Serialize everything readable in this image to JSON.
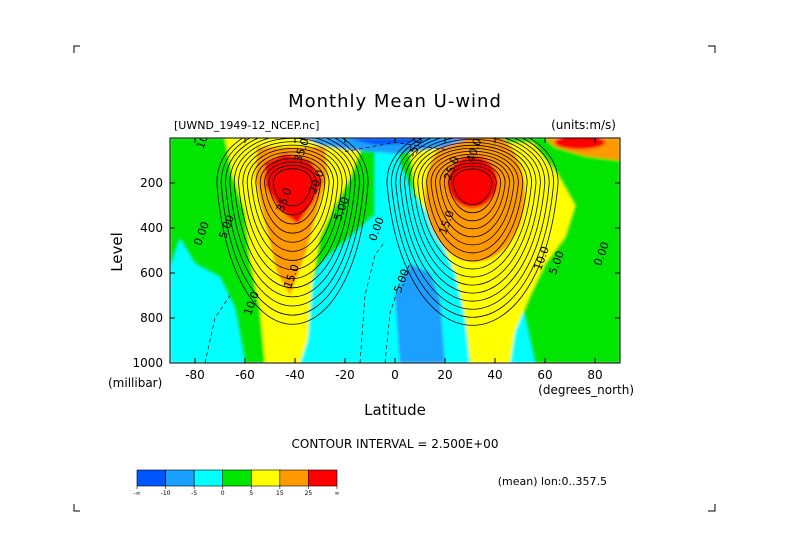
{
  "chart_data": {
    "type": "contour",
    "title": "Monthly Mean U-wind",
    "file_label": "[UWND_1949-12_NCEP.nc]",
    "units_label": "(units:m/s)",
    "xlabel": "Latitude",
    "x_units": "(degrees_north)",
    "ylabel": "Level",
    "y_units": "(millibar)",
    "xlim": [
      -90,
      90
    ],
    "ylim": [
      1000,
      0
    ],
    "x_ticks": [
      -80,
      -60,
      -40,
      -20,
      0,
      20,
      40,
      60,
      80
    ],
    "y_ticks": [
      200,
      400,
      600,
      800,
      1000
    ],
    "contour_interval_text": "CONTOUR INTERVAL = 2.500E+00",
    "mean_note": "(mean) lon:0..357.5",
    "contour_interval": 2.5,
    "fill_levels": [
      -10,
      -5,
      0,
      5,
      15,
      25
    ],
    "fill_colors": [
      "#0055ff",
      "#1aa0ff",
      "#00ffff",
      "#00e600",
      "#ffff00",
      "#ff9900",
      "#ff0000"
    ],
    "colorbar_labels": [
      "-∞",
      "-10",
      "-5",
      "0",
      "5",
      "15",
      "25",
      "∞"
    ],
    "jets": [
      {
        "lat": -41,
        "level": 200,
        "peak_speed": 35
      },
      {
        "lat": 31,
        "level": 200,
        "peak_speed": 40
      }
    ],
    "contour_labels": [
      {
        "text": "0.00",
        "lat": -76,
        "level": 430
      },
      {
        "text": "0.00",
        "lat": -6,
        "level": 410
      },
      {
        "text": "0.00",
        "lat": 84,
        "level": 520
      },
      {
        "text": "5.00",
        "lat": -66,
        "level": 400
      },
      {
        "text": "5.00",
        "lat": -20,
        "level": 320
      },
      {
        "text": "5.00",
        "lat": 4,
        "level": 640
      },
      {
        "text": "5.00",
        "lat": 66,
        "level": 560
      },
      {
        "text": "10.0",
        "lat": -56,
        "level": 740
      },
      {
        "text": "10.0",
        "lat": -75,
        "level": 0
      },
      {
        "text": "10.0",
        "lat": 60,
        "level": 540
      },
      {
        "text": "15.0",
        "lat": -40,
        "level": 620
      },
      {
        "text": "15.0",
        "lat": 22,
        "level": 380
      },
      {
        "text": "20.0",
        "lat": -30,
        "level": 200
      },
      {
        "text": "25.0",
        "lat": 24,
        "level": 140
      },
      {
        "text": "35.0",
        "lat": -43,
        "level": 280
      },
      {
        "text": "35.0",
        "lat": -36,
        "level": 60
      },
      {
        "text": "40.0",
        "lat": 33,
        "level": 60
      },
      {
        "text": "-5.00",
        "lat": 10,
        "level": 30
      }
    ]
  }
}
